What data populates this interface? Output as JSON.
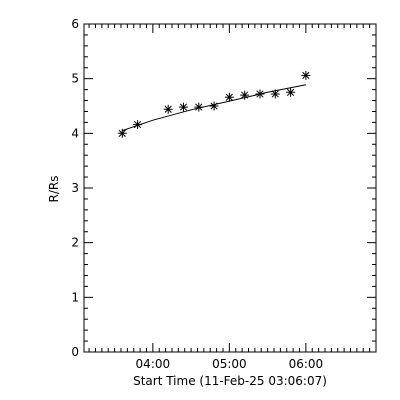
{
  "chart_data": {
    "type": "scatter",
    "title": "",
    "xlabel": "Start Time (11-Feb-25 03:06:07)",
    "ylabel": "R/Rs",
    "xlim": [
      "03:06",
      "06:55"
    ],
    "ylim": [
      0,
      6
    ],
    "x_ticks": [
      "04:00",
      "05:00",
      "06:00"
    ],
    "y_ticks": [
      0,
      1,
      2,
      3,
      4,
      5,
      6
    ],
    "grid": false,
    "legend": "none",
    "points": [
      {
        "x": "03:36",
        "y": 4.0
      },
      {
        "x": "03:48",
        "y": 4.16
      },
      {
        "x": "04:12",
        "y": 4.44
      },
      {
        "x": "04:24",
        "y": 4.48
      },
      {
        "x": "04:36",
        "y": 4.48
      },
      {
        "x": "04:48",
        "y": 4.5
      },
      {
        "x": "05:00",
        "y": 4.66
      },
      {
        "x": "05:12",
        "y": 4.7
      },
      {
        "x": "05:24",
        "y": 4.72
      },
      {
        "x": "05:36",
        "y": 4.72
      },
      {
        "x": "05:48",
        "y": 4.75
      },
      {
        "x": "06:00",
        "y": 5.06
      }
    ],
    "fit_line": [
      {
        "x": "03:36",
        "y": 4.05
      },
      {
        "x": "04:00",
        "y": 4.24
      },
      {
        "x": "04:30",
        "y": 4.43
      },
      {
        "x": "05:00",
        "y": 4.59
      },
      {
        "x": "05:30",
        "y": 4.75
      },
      {
        "x": "06:00",
        "y": 4.89
      }
    ],
    "marker": "asterisk",
    "colors": {
      "foreground": "#000000",
      "background": "#ffffff"
    }
  }
}
